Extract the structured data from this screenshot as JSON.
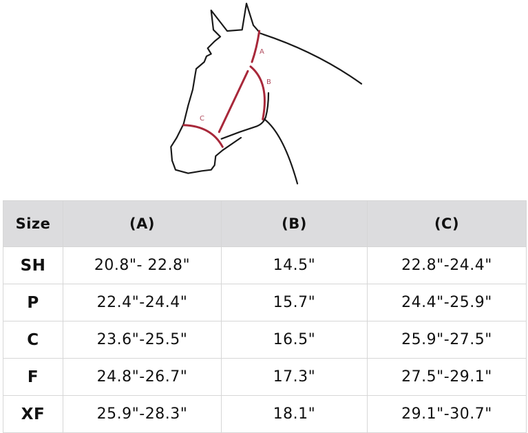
{
  "diagram": {
    "labels": [
      "A",
      "B",
      "C"
    ],
    "colors": {
      "outline": "#1a1a1a",
      "measure": "#a8283a",
      "label": "#b04a5c"
    }
  },
  "table": {
    "headers": [
      "Size",
      "(A)",
      "(B)",
      "(C)"
    ],
    "rows": [
      [
        "SH",
        "20.8\"- 22.8\"",
        "14.5\"",
        "22.8\"-24.4\""
      ],
      [
        "P",
        "22.4\"-24.4\"",
        "15.7\"",
        "24.4\"-25.9\""
      ],
      [
        "C",
        "23.6\"-25.5\"",
        "16.5\"",
        "25.9\"-27.5\""
      ],
      [
        "F",
        "24.8\"-26.7\"",
        "17.3\"",
        "27.5\"-29.1\""
      ],
      [
        "XF",
        "25.9\"-28.3\"",
        "18.1\"",
        "29.1\"-30.7\""
      ]
    ]
  }
}
